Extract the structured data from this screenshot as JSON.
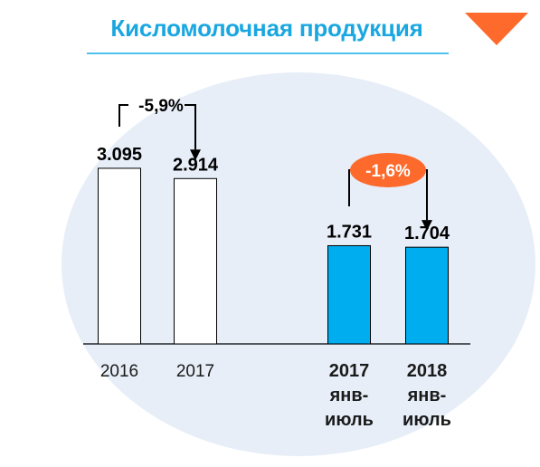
{
  "title": "Кисломолочная продукция",
  "colors": {
    "title": "#1aa7e0",
    "accent": "#fd6a2b",
    "bar_annual_fill": "#ffffff",
    "bar_monthly_fill": "#00aef0",
    "bar_stroke": "#000000",
    "ellipse": "#e7eef8"
  },
  "chart_data": {
    "type": "bar",
    "title": "",
    "xlabel": "",
    "ylabel": "",
    "ylim": [
      0,
      3.5
    ],
    "grid": false,
    "legend": "none",
    "categories": [
      [
        "2016"
      ],
      [
        "2017"
      ],
      [
        "2017",
        "янв-",
        "июль"
      ],
      [
        "2018",
        "янв-",
        "июль"
      ]
    ],
    "values": [
      3.095,
      2.914,
      1.731,
      1.704
    ],
    "value_labels": [
      "3.095",
      "2.914",
      "1.731",
      "1.704"
    ],
    "changes": [
      {
        "label": "-5,9%",
        "from": 0,
        "to": 1
      },
      {
        "label": "-1,6%",
        "from": 2,
        "to": 3
      }
    ]
  }
}
